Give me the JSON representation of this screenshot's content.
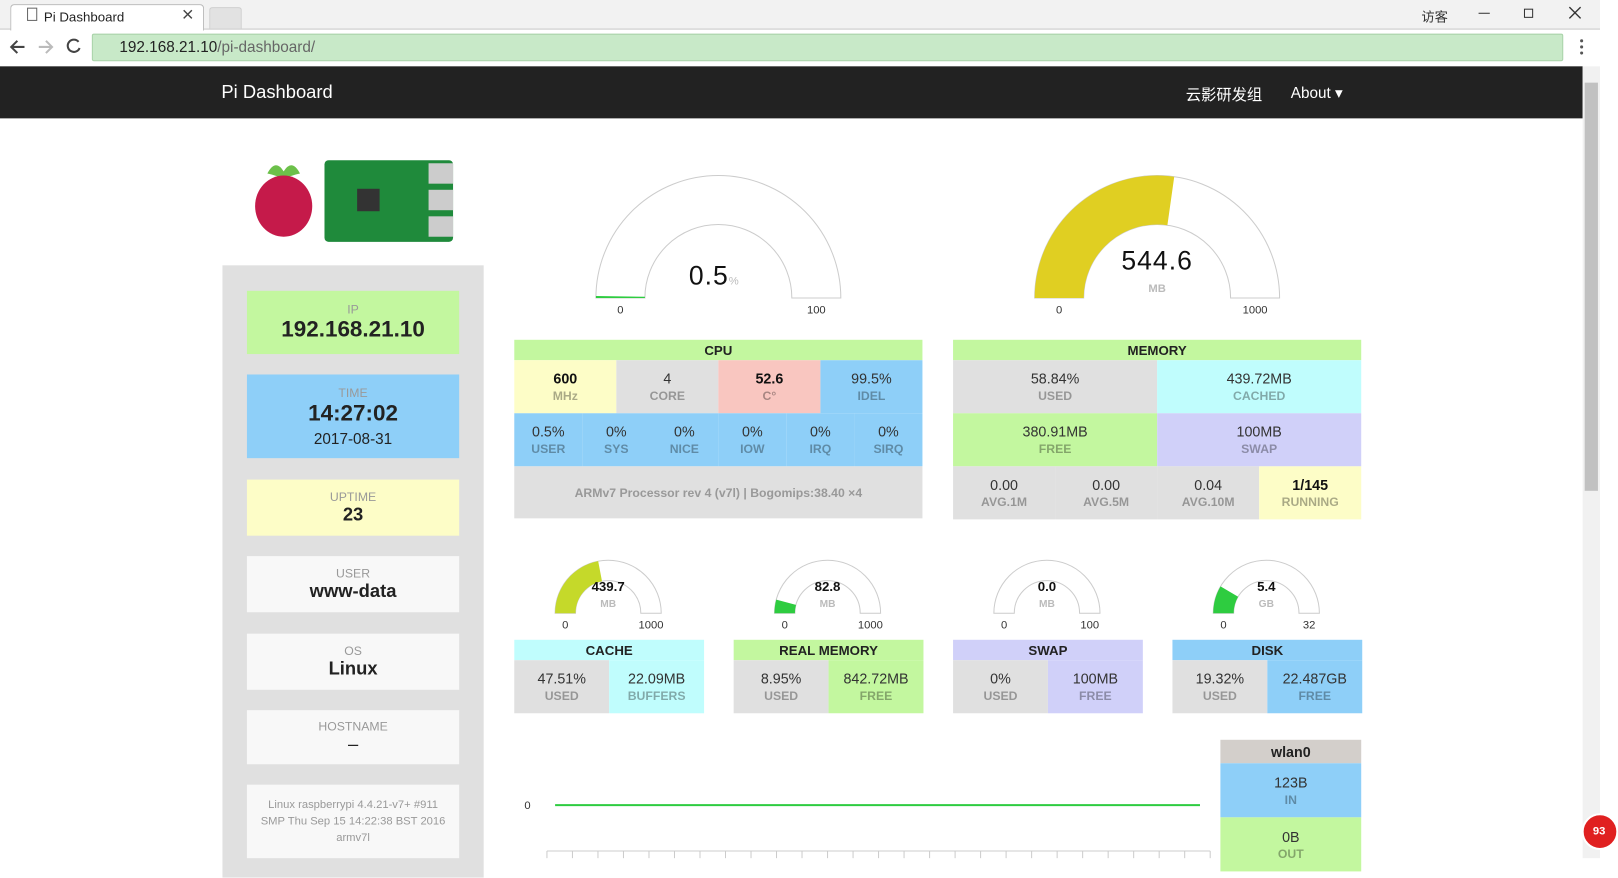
{
  "browser": {
    "tab_title": "Pi Dashboard",
    "url_host": "192.168.21.10",
    "url_path": "/pi-dashboard/",
    "user": "访客"
  },
  "navbar": {
    "brand": "Pi Dashboard",
    "links": [
      "云影研发组",
      "About"
    ]
  },
  "sidebar": {
    "ip": {
      "label": "IP",
      "value": "192.168.21.10"
    },
    "time": {
      "label": "TIME",
      "value": "14:27:02",
      "date": "2017-08-31"
    },
    "uptime": {
      "label": "UPTIME",
      "value": "23"
    },
    "user": {
      "label": "USER",
      "value": "www-data"
    },
    "os": {
      "label": "OS",
      "value": "Linux"
    },
    "hostname": {
      "label": "HOSTNAME",
      "value": "–"
    },
    "kernel": "Linux raspberrypi 4.4.21-v7+ #911 SMP Thu Sep 15 14:22:38 BST 2016 armv7l"
  },
  "gauges": [
    {
      "value": 0.5,
      "unit": "%",
      "min": 0,
      "max": 100,
      "color": "#2ecc40"
    },
    {
      "value": 544.6,
      "unit": "MB",
      "min": 0,
      "max": 1000,
      "color": "#e0cf22"
    },
    {
      "value": 439.7,
      "unit": "MB",
      "min": 0,
      "max": 1000,
      "color": "#c5d92a"
    },
    {
      "value": 82.8,
      "unit": "MB",
      "min": 0,
      "max": 1000,
      "color": "#2ecc40"
    },
    {
      "value": 0,
      "value_label": "0.0",
      "unit": "MB",
      "min": 0,
      "max": 100,
      "color": "#2ecc40"
    },
    {
      "value": 5.4,
      "unit": "GB",
      "min": 0,
      "max": 32,
      "color": "#2ecc40"
    }
  ],
  "cpu": {
    "title": "CPU",
    "rows": [
      [
        {
          "value": "600",
          "label": "MHz"
        },
        {
          "value": "4",
          "label": "CORE"
        },
        {
          "value": "52.6",
          "label": "C°"
        },
        {
          "value": "99.5%",
          "label": "IDEL"
        }
      ],
      [
        {
          "value": "0.5%",
          "label": "USER"
        },
        {
          "value": "0%",
          "label": "SYS"
        },
        {
          "value": "0%",
          "label": "NICE"
        },
        {
          "value": "0%",
          "label": "IOW"
        },
        {
          "value": "0%",
          "label": "IRQ"
        },
        {
          "value": "0%",
          "label": "SIRQ"
        }
      ],
      [
        {
          "value": "ARMv7 Processor rev 4 (v7l) | Bogomips:38.40 ×4"
        }
      ]
    ]
  },
  "memory": {
    "title": "MEMORY",
    "rows": [
      [
        {
          "value": "58.84%",
          "label": "USED"
        },
        {
          "value": "439.72MB",
          "label": "CACHED"
        }
      ],
      [
        {
          "value": "380.91MB",
          "label": "FREE"
        },
        {
          "value": "100MB",
          "label": "SWAP"
        }
      ],
      [
        {
          "value": "0.00",
          "label": "AVG.1M"
        },
        {
          "value": "0.00",
          "label": "AVG.5M"
        },
        {
          "value": "0.04",
          "label": "AVG.10M"
        },
        {
          "value": "1/145",
          "label": "RUNNING"
        }
      ]
    ]
  },
  "panels": [
    {
      "title": "CACHE",
      "cells": [
        {
          "value": "47.51%",
          "label": "USED"
        },
        {
          "value": "22.09MB",
          "label": "BUFFERS"
        }
      ]
    },
    {
      "title": "REAL MEMORY",
      "cells": [
        {
          "value": "8.95%",
          "label": "USED"
        },
        {
          "value": "842.72MB",
          "label": "FREE"
        }
      ]
    },
    {
      "title": "SWAP",
      "cells": [
        {
          "value": "0%",
          "label": "USED"
        },
        {
          "value": "100MB",
          "label": "FREE"
        }
      ]
    },
    {
      "title": "DISK",
      "cells": [
        {
          "value": "19.32%",
          "label": "USED"
        },
        {
          "value": "22.487GB",
          "label": "FREE"
        }
      ]
    }
  ],
  "network": {
    "yticks": [
      0
    ],
    "interface": "wlan0",
    "in": {
      "value": "123B",
      "label": "IN"
    },
    "out": {
      "value": "0B",
      "label": "OUT"
    }
  },
  "badge": "93"
}
